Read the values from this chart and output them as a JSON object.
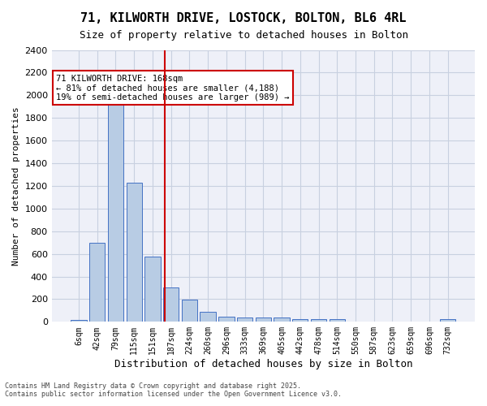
{
  "title1": "71, KILWORTH DRIVE, LOSTOCK, BOLTON, BL6 4RL",
  "title2": "Size of property relative to detached houses in Bolton",
  "xlabel": "Distribution of detached houses by size in Bolton",
  "ylabel": "Number of detached properties",
  "bar_color": "#b8cce4",
  "bar_edge_color": "#4472c4",
  "grid_color": "#c8d0e0",
  "bg_color": "#eef0f8",
  "categories": [
    "6sqm",
    "42sqm",
    "79sqm",
    "115sqm",
    "151sqm",
    "187sqm",
    "224sqm",
    "260sqm",
    "296sqm",
    "333sqm",
    "369sqm",
    "405sqm",
    "442sqm",
    "478sqm",
    "514sqm",
    "550sqm",
    "587sqm",
    "623sqm",
    "659sqm",
    "696sqm",
    "732sqm"
  ],
  "values": [
    20,
    700,
    1950,
    1230,
    575,
    305,
    195,
    85,
    48,
    38,
    35,
    35,
    25,
    25,
    22,
    0,
    0,
    0,
    0,
    0,
    25
  ],
  "vline_x": 4.65,
  "vline_color": "#cc0000",
  "annotation_title": "71 KILWORTH DRIVE: 168sqm",
  "annotation_line1": "← 81% of detached houses are smaller (4,188)",
  "annotation_line2": "19% of semi-detached houses are larger (989) →",
  "annotation_box_color": "#ffffff",
  "annotation_box_edge": "#cc0000",
  "ylim": [
    0,
    2400
  ],
  "yticks": [
    0,
    200,
    400,
    600,
    800,
    1000,
    1200,
    1400,
    1600,
    1800,
    2000,
    2200,
    2400
  ],
  "footnote1": "Contains HM Land Registry data © Crown copyright and database right 2025.",
  "footnote2": "Contains public sector information licensed under the Open Government Licence v3.0."
}
